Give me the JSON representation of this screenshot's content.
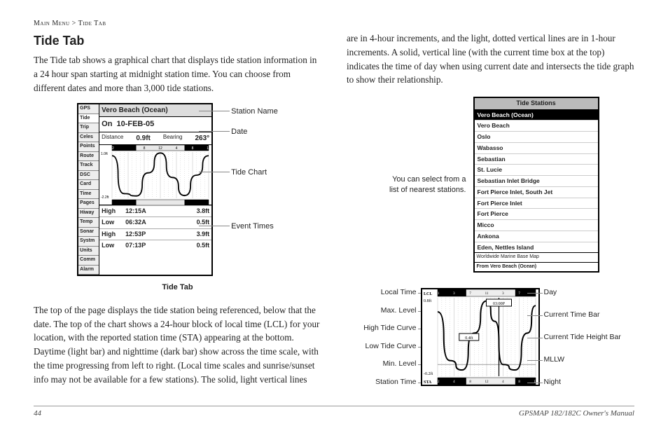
{
  "breadcrumb": {
    "a": "Main Menu",
    "sep": ">",
    "b": "Tide Tab"
  },
  "title": "Tide Tab",
  "p1": "The Tide tab shows a graphical chart that displays tide station information in a 24 hour span starting at midnight station time. You can choose from different dates and more than 3,000 tide stations.",
  "p2": "The top of the page displays the tide station being referenced, below that the date. The top of the chart shows a 24-hour block of local time (LCL) for your location, with the reported station time (STA) appearing at the bottom. Daytime (light bar) and nighttime (dark bar) show across the time scale, with the time progressing from left to right. (Local time scales and sunrise/sunset info may not be available for a few stations). The solid, light vertical lines",
  "p3": "are in 4-hour increments, and the light, dotted vertical lines are in 1-hour increments. A solid, vertical line (with the current time box at the top) indicates the time of day when using current date and intersects the tide graph to show their relationship.",
  "device1": {
    "tabs": [
      "GPS",
      "Tide",
      "Trip",
      "Celes",
      "Points",
      "Route",
      "Track",
      "DSC",
      "Card",
      "Time",
      "Pages",
      "Hiway",
      "Temp",
      "Sonar",
      "Systm",
      "Units",
      "Comm",
      "Alarm"
    ],
    "active_tab": "Tide",
    "station": "Vero Beach (Ocean)",
    "date_label": "On",
    "date": "10-FEB-05",
    "dist_label": "Distance",
    "dist": "0.9ft",
    "brg_label": "Bearing",
    "brg": "263°",
    "events": [
      {
        "t": "High",
        "time": "12:15A",
        "h": "3.8ft"
      },
      {
        "t": "Low",
        "time": "06:32A",
        "h": "0.5ft"
      },
      {
        "t": "High",
        "time": "12:53P",
        "h": "3.9ft"
      },
      {
        "t": "Low",
        "time": "07:13P",
        "h": "0.5ft"
      }
    ],
    "callouts": [
      "Station Name",
      "Date",
      "Tide Chart",
      "Event Times"
    ],
    "caption": "Tide Tab",
    "chart": {
      "series_color": "#000000",
      "grid_color": "#bbbbbb",
      "bg": "#ffffff",
      "night_color": "#000000",
      "x_ticks_top": [
        "12",
        "4",
        "8",
        "12",
        "4",
        "8",
        "12"
      ],
      "x_ticks_bot": [
        "12",
        "4",
        "8",
        "12",
        "4",
        "8",
        "12"
      ],
      "y_left": [
        "1.0ft",
        "-2.2ft"
      ],
      "points": [
        [
          0,
          0.92
        ],
        [
          3,
          0.1
        ],
        [
          6,
          0.05
        ],
        [
          9,
          0.55
        ],
        [
          12,
          0.98
        ],
        [
          15,
          0.45
        ],
        [
          18,
          0.06
        ],
        [
          21,
          0.5
        ],
        [
          24,
          0.92
        ]
      ]
    }
  },
  "fig2": {
    "note": "You can select from a list of nearest stations.",
    "title": "Tide Stations",
    "selected": "Vero Beach (Ocean)",
    "items": [
      "Vero Beach",
      "Oslo",
      "Wabasso",
      "Sebastian",
      "St. Lucie",
      "Sebastian Inlet Bridge",
      "Fort Pierce Inlet, South Jet",
      "Fort Pierce Inlet",
      "Fort Pierce",
      "Micco",
      "Ankona",
      "Eden, Nettles Island"
    ],
    "foot1": "Worldwide Marine Base Map",
    "foot2": "From Vero Beach (Ocean)"
  },
  "fig3": {
    "left": [
      "Local Time",
      "Max. Level",
      "High Tide Curve",
      "Low Tide Curve",
      "Min. Level",
      "Station Time"
    ],
    "right": [
      "Day",
      "Current Time Bar",
      "Current Tide Height Bar",
      "MLLW",
      "Night"
    ],
    "chart": {
      "lcl_ticks": [
        "LCL",
        "11",
        "3",
        "7",
        "11",
        "3",
        "7"
      ],
      "sta_ticks": [
        "STA",
        "12",
        "4",
        "8",
        "12",
        "4",
        "8",
        "12"
      ],
      "y_top": "0.8ft",
      "y_bot": "-0.2ft",
      "mid_label": "0.4ft",
      "time_box": "03:00P",
      "curve_color": "#000000",
      "grid_color": "#bbbbbb",
      "night_color": "#000000",
      "bg": "#ffffff",
      "points": [
        [
          0,
          0.82
        ],
        [
          3,
          0.2
        ],
        [
          6,
          0.08
        ],
        [
          9,
          0.55
        ],
        [
          12,
          0.96
        ],
        [
          14,
          0.7
        ],
        [
          16,
          0.15
        ],
        [
          19,
          0.08
        ],
        [
          22,
          0.55
        ],
        [
          24,
          0.9
        ]
      ]
    }
  },
  "footer": {
    "page": "44",
    "manual": "GPSMAP 182/182C Owner's Manual"
  }
}
